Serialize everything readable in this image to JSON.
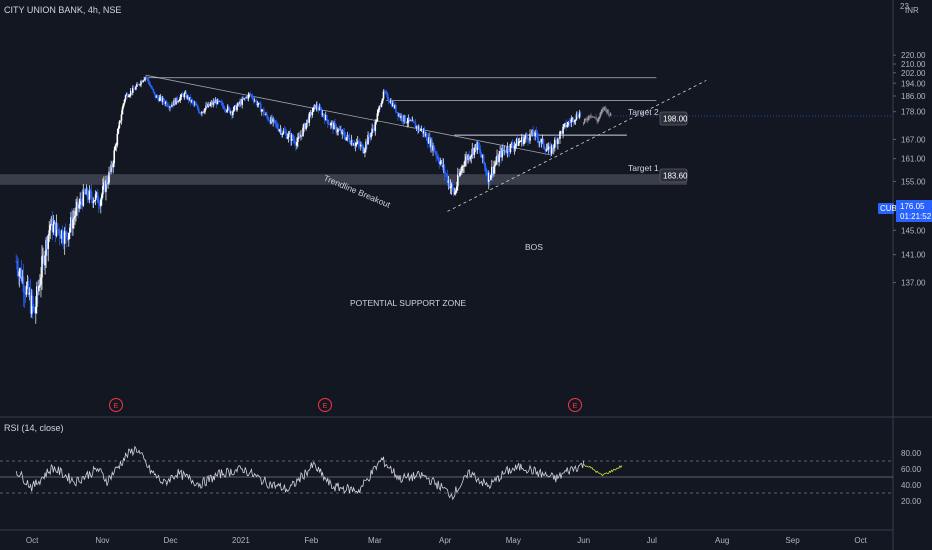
{
  "header": {
    "symbol": "CITY UNION BANK",
    "interval": "4h",
    "exchange": "NSE",
    "currency": "INR",
    "top_price": "23"
  },
  "rsi_panel": {
    "title": "RSI (14, close)"
  },
  "colors": {
    "background": "#131722",
    "up_candle": "#ffffff",
    "down_candle": "#2962ff",
    "projection_candle": "#9e9e9e",
    "rsi_line": "#d1d4dc",
    "rsi_projection": "#cddc39",
    "price_tag": "#2962ff",
    "earnings_marker": "#f23645",
    "support_zone": "#4a4e5a"
  },
  "annotations": {
    "target2_label": "Target 2",
    "target2_value": "198.00",
    "target1_label": "Target 1",
    "target1_value": "183.60",
    "trendline_label": "Trendline Breakout",
    "bos_label": "BOS",
    "support_label": "POTENTIAL SUPPORT ZONE",
    "earnings_symbol": "E"
  },
  "price_tag": {
    "symbol": "CUB",
    "price": "176.05",
    "countdown": "01:21:52"
  },
  "chart_data": [
    {
      "type": "candlestick",
      "x_labels": [
        "Oct",
        "Nov",
        "Dec",
        "2021",
        "Feb",
        "Mar",
        "Apr",
        "May",
        "Jun",
        "Jul",
        "Aug",
        "Sep",
        "Oct"
      ],
      "y_ticks": [
        "220.00",
        "210.00",
        "202.00",
        "194.00",
        "186.00",
        "178.00",
        "167.00",
        "161.00",
        "155.00",
        "149.00",
        "145.00",
        "141.00",
        "137.00"
      ],
      "price_path": [
        {
          "date": "2020-09-24",
          "price": 140
        },
        {
          "date": "2020-10-02",
          "price": 133
        },
        {
          "date": "2020-10-09",
          "price": 146
        },
        {
          "date": "2020-10-16",
          "price": 144
        },
        {
          "date": "2020-10-24",
          "price": 152
        },
        {
          "date": "2020-10-31",
          "price": 151
        },
        {
          "date": "2020-11-05",
          "price": 158
        },
        {
          "date": "2020-11-08",
          "price": 170
        },
        {
          "date": "2020-11-11",
          "price": 186
        },
        {
          "date": "2020-11-15",
          "price": 190
        },
        {
          "date": "2020-11-20",
          "price": 199
        },
        {
          "date": "2020-11-24",
          "price": 186
        },
        {
          "date": "2020-12-01",
          "price": 181
        },
        {
          "date": "2020-12-07",
          "price": 187
        },
        {
          "date": "2020-12-14",
          "price": 178
        },
        {
          "date": "2020-12-21",
          "price": 183
        },
        {
          "date": "2020-12-28",
          "price": 178
        },
        {
          "date": "2021-01-05",
          "price": 187
        },
        {
          "date": "2021-01-12",
          "price": 176
        },
        {
          "date": "2021-01-19",
          "price": 170
        },
        {
          "date": "2021-01-26",
          "price": 166
        },
        {
          "date": "2021-02-03",
          "price": 181
        },
        {
          "date": "2021-02-09",
          "price": 173
        },
        {
          "date": "2021-02-16",
          "price": 168
        },
        {
          "date": "2021-02-24",
          "price": 164
        },
        {
          "date": "2021-03-01",
          "price": 172
        },
        {
          "date": "2021-03-05",
          "price": 188
        },
        {
          "date": "2021-03-12",
          "price": 176
        },
        {
          "date": "2021-03-22",
          "price": 170
        },
        {
          "date": "2021-03-27",
          "price": 164
        },
        {
          "date": "2021-04-01",
          "price": 157
        },
        {
          "date": "2021-04-05",
          "price": 152
        },
        {
          "date": "2021-04-09",
          "price": 160
        },
        {
          "date": "2021-04-15",
          "price": 165
        },
        {
          "date": "2021-04-20",
          "price": 156
        },
        {
          "date": "2021-04-26",
          "price": 163
        },
        {
          "date": "2021-05-03",
          "price": 166
        },
        {
          "date": "2021-05-10",
          "price": 169
        },
        {
          "date": "2021-05-17",
          "price": 163
        },
        {
          "date": "2021-05-24",
          "price": 172
        },
        {
          "date": "2021-05-31",
          "price": 178
        }
      ],
      "projection_path": [
        {
          "date": "2021-06-01",
          "price": 173
        },
        {
          "date": "2021-06-04",
          "price": 177
        },
        {
          "date": "2021-06-07",
          "price": 174
        },
        {
          "date": "2021-06-10",
          "price": 180
        },
        {
          "date": "2021-06-13",
          "price": 176
        }
      ],
      "levels": {
        "target2": 198.0,
        "target1": 183.6,
        "bos": 168.5,
        "support_zone": [
          154.2,
          156.8
        ],
        "last_price": 176.05
      },
      "trendlines": [
        {
          "name": "descending",
          "from": {
            "date": "2020-11-20",
            "price": 200
          },
          "to": {
            "date": "2021-05-18",
            "price": 162
          }
        },
        {
          "name": "ascending",
          "from": {
            "date": "2021-04-02",
            "price": 148.5
          },
          "to": {
            "date": "2021-07-25",
            "price": 196
          }
        }
      ]
    },
    {
      "type": "line",
      "series": "RSI (14, close)",
      "y_ticks": [
        "80.00",
        "60.00",
        "40.00",
        "20.00"
      ],
      "levels": [
        70,
        50,
        30
      ],
      "path": [
        {
          "date": "2020-09-24",
          "value": 58
        },
        {
          "date": "2020-10-01",
          "value": 37
        },
        {
          "date": "2020-10-10",
          "value": 62
        },
        {
          "date": "2020-10-20",
          "value": 44
        },
        {
          "date": "2020-10-30",
          "value": 60
        },
        {
          "date": "2020-11-03",
          "value": 45
        },
        {
          "date": "2020-11-12",
          "value": 78
        },
        {
          "date": "2020-11-16",
          "value": 86
        },
        {
          "date": "2020-11-22",
          "value": 58
        },
        {
          "date": "2020-11-28",
          "value": 42
        },
        {
          "date": "2020-12-04",
          "value": 55
        },
        {
          "date": "2020-12-14",
          "value": 41
        },
        {
          "date": "2020-12-23",
          "value": 54
        },
        {
          "date": "2021-01-02",
          "value": 60
        },
        {
          "date": "2021-01-12",
          "value": 43
        },
        {
          "date": "2021-01-22",
          "value": 34
        },
        {
          "date": "2021-02-02",
          "value": 65
        },
        {
          "date": "2021-02-10",
          "value": 38
        },
        {
          "date": "2021-02-22",
          "value": 33
        },
        {
          "date": "2021-03-04",
          "value": 72
        },
        {
          "date": "2021-03-12",
          "value": 48
        },
        {
          "date": "2021-03-22",
          "value": 52
        },
        {
          "date": "2021-03-30",
          "value": 38
        },
        {
          "date": "2021-04-04",
          "value": 27
        },
        {
          "date": "2021-04-12",
          "value": 55
        },
        {
          "date": "2021-04-20",
          "value": 38
        },
        {
          "date": "2021-04-28",
          "value": 57
        },
        {
          "date": "2021-05-05",
          "value": 63
        },
        {
          "date": "2021-05-13",
          "value": 54
        },
        {
          "date": "2021-05-20",
          "value": 48
        },
        {
          "date": "2021-05-25",
          "value": 58
        },
        {
          "date": "2021-06-01",
          "value": 66
        }
      ],
      "projection": [
        {
          "date": "2021-06-01",
          "value": 66
        },
        {
          "date": "2021-06-05",
          "value": 60
        },
        {
          "date": "2021-06-09",
          "value": 52
        },
        {
          "date": "2021-06-13",
          "value": 57
        },
        {
          "date": "2021-06-18",
          "value": 64
        }
      ]
    }
  ]
}
